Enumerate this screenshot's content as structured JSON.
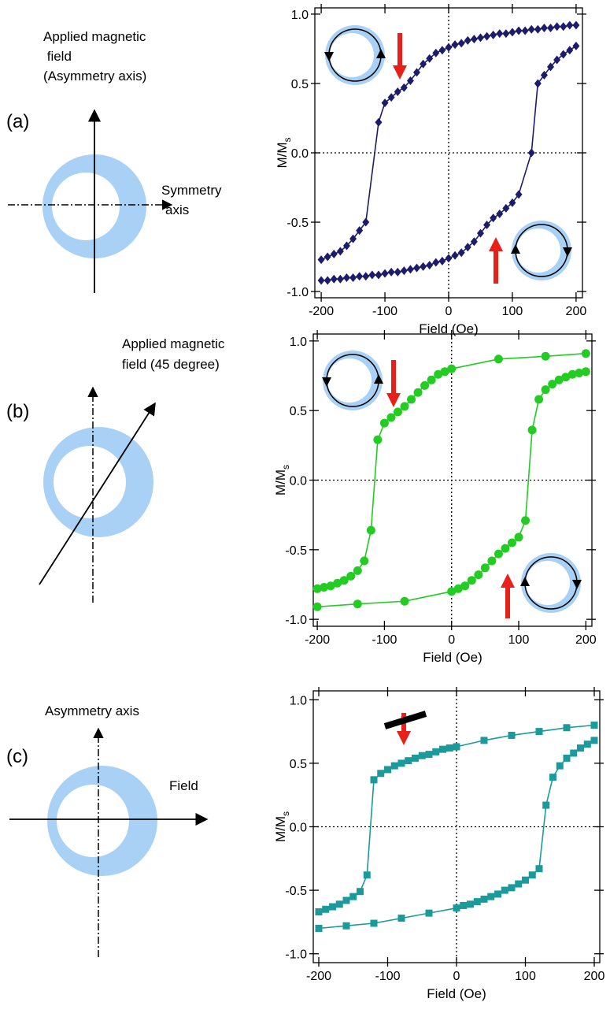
{
  "diagrams": [
    {
      "label": "(a)",
      "field_label": [
        "Applied magnetic",
        " field",
        "(Asymmetry axis)"
      ],
      "axis_label": [
        "Symmetry",
        "axis"
      ]
    },
    {
      "label": "(b)",
      "field_label": [
        "Applied magnetic",
        "field (45 degree)"
      ]
    },
    {
      "label": "(c)",
      "axis_label": [
        "Asymmetry axis"
      ],
      "field_label": [
        "Field"
      ]
    }
  ],
  "chart_data": [
    {
      "type": "line",
      "xlabel": "Field (Oe)",
      "ylabel": "M/M",
      "ylabel_subscript": "s",
      "xlim": [
        -210,
        210
      ],
      "ylim": [
        -1.045,
        1.045
      ],
      "xticks": [
        -200,
        -100,
        0,
        100,
        200
      ],
      "yticks": [
        {
          "value": -1,
          "label": "-1.0"
        },
        {
          "value": -0.5,
          "label": "-0.5"
        },
        {
          "value": 0,
          "label": "0.0"
        },
        {
          "value": 0.5,
          "label": "0.5"
        },
        {
          "value": 1,
          "label": "1.0"
        }
      ],
      "zero_lines": true,
      "marker": "diamond",
      "series": [
        {
          "color": "#1c1c6b",
          "x": [
            -200,
            -190,
            -180,
            -170,
            -160,
            -150,
            -140,
            -130,
            -110,
            -100,
            -90,
            -80,
            -70,
            -60,
            -50,
            -40,
            -30,
            -20,
            -10,
            0,
            10,
            20,
            30,
            40,
            50,
            60,
            70,
            80,
            90,
            100,
            110,
            120,
            130,
            140,
            150,
            160,
            170,
            180,
            190,
            200
          ],
          "values": [
            -0.77,
            -0.75,
            -0.73,
            -0.71,
            -0.67,
            -0.62,
            -0.56,
            -0.5,
            0.22,
            0.36,
            0.4,
            0.44,
            0.47,
            0.52,
            0.58,
            0.64,
            0.68,
            0.72,
            0.74,
            0.76,
            0.78,
            0.79,
            0.81,
            0.82,
            0.83,
            0.84,
            0.85,
            0.86,
            0.86,
            0.87,
            0.88,
            0.88,
            0.89,
            0.89,
            0.9,
            0.9,
            0.91,
            0.91,
            0.92,
            0.92
          ]
        },
        {
          "color": "#1c1c6b",
          "x": [
            -200,
            -190,
            -180,
            -170,
            -160,
            -150,
            -140,
            -130,
            -120,
            -110,
            -100,
            -90,
            -80,
            -70,
            -60,
            -50,
            -40,
            -30,
            -20,
            -10,
            0,
            10,
            20,
            30,
            40,
            50,
            60,
            70,
            80,
            90,
            100,
            110,
            130,
            140,
            150,
            160,
            170,
            180,
            190,
            200
          ],
          "values": [
            -0.92,
            -0.92,
            -0.91,
            -0.91,
            -0.9,
            -0.9,
            -0.89,
            -0.89,
            -0.88,
            -0.88,
            -0.87,
            -0.86,
            -0.86,
            -0.85,
            -0.84,
            -0.83,
            -0.82,
            -0.81,
            -0.79,
            -0.78,
            -0.76,
            -0.74,
            -0.72,
            -0.68,
            -0.64,
            -0.58,
            -0.52,
            -0.47,
            -0.44,
            -0.4,
            -0.36,
            -0.3,
            0,
            0.5,
            0.56,
            0.62,
            0.67,
            0.71,
            0.74,
            0.77
          ]
        }
      ]
    },
    {
      "type": "line",
      "xlabel": "Field (Oe)",
      "ylabel": "M/M",
      "ylabel_subscript": "s",
      "xlim": [
        -206,
        209
      ],
      "ylim": [
        -1.05,
        1.05
      ],
      "xticks": [
        -200,
        -100,
        0,
        100,
        200
      ],
      "yticks": [
        {
          "value": -1,
          "label": "-1.0"
        },
        {
          "value": -0.5,
          "label": "-0.5"
        },
        {
          "value": 0,
          "label": "0.0"
        },
        {
          "value": 0.5,
          "label": "0.5"
        },
        {
          "value": 1,
          "label": "1.0"
        }
      ],
      "zero_lines": true,
      "marker": "circle",
      "series": [
        {
          "color": "#22cc22",
          "x": [
            -200,
            -190,
            -180,
            -170,
            -160,
            -150,
            -140,
            -130,
            -120,
            -110,
            -100,
            -90,
            -80,
            -70,
            -60,
            -50,
            -40,
            -30,
            -20,
            -10,
            0,
            70,
            140,
            200
          ],
          "values": [
            -0.78,
            -0.77,
            -0.76,
            -0.74,
            -0.72,
            -0.69,
            -0.65,
            -0.58,
            -0.36,
            0.29,
            0.41,
            0.45,
            0.49,
            0.53,
            0.58,
            0.63,
            0.68,
            0.72,
            0.76,
            0.78,
            0.8,
            0.87,
            0.89,
            0.91
          ]
        },
        {
          "color": "#22cc22",
          "x": [
            -200,
            -140,
            -70,
            0,
            10,
            20,
            30,
            40,
            50,
            60,
            70,
            80,
            90,
            100,
            110,
            120,
            130,
            140,
            150,
            160,
            170,
            180,
            190,
            200
          ],
          "values": [
            -0.91,
            -0.89,
            -0.87,
            -0.8,
            -0.78,
            -0.76,
            -0.72,
            -0.68,
            -0.63,
            -0.58,
            -0.53,
            -0.49,
            -0.45,
            -0.41,
            -0.29,
            0.36,
            0.58,
            0.65,
            0.69,
            0.72,
            0.74,
            0.76,
            0.77,
            0.78
          ]
        }
      ]
    },
    {
      "type": "line",
      "xlabel": "Field (Oe)",
      "ylabel": "M/M",
      "ylabel_subscript": "s",
      "xlim": [
        -208,
        208
      ],
      "ylim": [
        -1.07,
        1.07
      ],
      "xticks": [
        -200,
        -100,
        0,
        100,
        200
      ],
      "yticks": [
        {
          "value": -1,
          "label": "-1.0"
        },
        {
          "value": -0.5,
          "label": "-0.5"
        },
        {
          "value": 0,
          "label": "0.0"
        },
        {
          "value": 0.5,
          "label": "0.5"
        },
        {
          "value": 1,
          "label": "1.0"
        }
      ],
      "zero_lines": true,
      "marker": "square",
      "series": [
        {
          "color": "#1a9a9a",
          "x": [
            -200,
            -190,
            -180,
            -170,
            -160,
            -150,
            -140,
            -130,
            -120,
            -110,
            -100,
            -90,
            -80,
            -70,
            -60,
            -50,
            -40,
            -30,
            -20,
            -10,
            0,
            40,
            80,
            120,
            160,
            200
          ],
          "values": [
            -0.67,
            -0.65,
            -0.63,
            -0.61,
            -0.58,
            -0.55,
            -0.51,
            -0.38,
            0.37,
            0.42,
            0.45,
            0.48,
            0.5,
            0.52,
            0.54,
            0.56,
            0.57,
            0.59,
            0.61,
            0.62,
            0.63,
            0.68,
            0.72,
            0.75,
            0.78,
            0.8
          ]
        },
        {
          "color": "#1a9a9a",
          "x": [
            -200,
            -160,
            -120,
            -80,
            -40,
            0,
            10,
            20,
            30,
            40,
            50,
            60,
            70,
            80,
            90,
            100,
            110,
            120,
            130,
            140,
            150,
            160,
            170,
            180,
            190,
            200
          ],
          "values": [
            -0.8,
            -0.78,
            -0.76,
            -0.72,
            -0.68,
            -0.64,
            -0.62,
            -0.61,
            -0.59,
            -0.57,
            -0.55,
            -0.53,
            -0.5,
            -0.48,
            -0.45,
            -0.42,
            -0.38,
            -0.33,
            0.17,
            0.39,
            0.48,
            0.54,
            0.58,
            0.62,
            0.65,
            0.68
          ]
        }
      ]
    }
  ]
}
